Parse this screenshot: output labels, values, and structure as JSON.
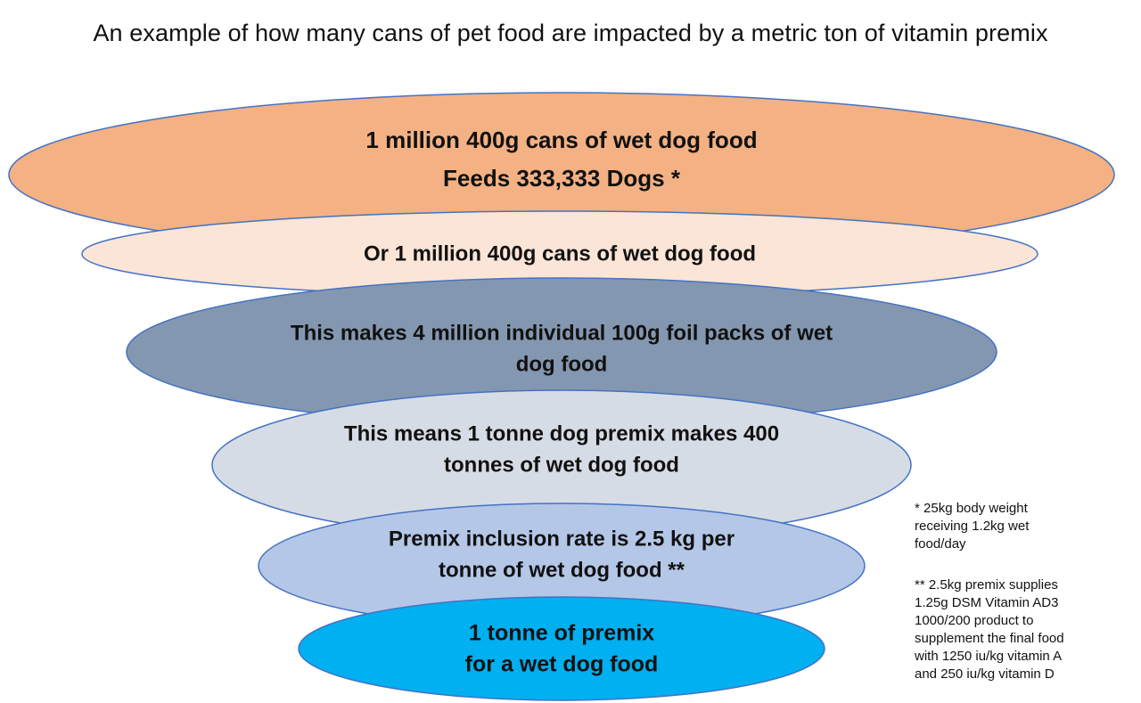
{
  "title": "An example of how many cans of pet food are impacted by a metric ton of vitamin premix",
  "layers": [
    {
      "lines": [
        "1 million 400g cans of wet dog food",
        "Feeds 333,333 Dogs *"
      ],
      "color": "#f4b183"
    },
    {
      "lines": [
        "Or 1 million 400g cans of wet dog food"
      ],
      "color": "#fbe5d6"
    },
    {
      "lines": [
        "This makes 4 million individual 100g foil packs of wet",
        "dog food"
      ],
      "color": "#8497b0"
    },
    {
      "lines": [
        "This means 1 tonne dog premix makes 400",
        "tonnes of wet dog food"
      ],
      "color": "#d6dce5"
    },
    {
      "lines": [
        "Premix inclusion rate is 2.5 kg per",
        "tonne of wet dog food **"
      ],
      "color": "#b4c7e7"
    },
    {
      "lines": [
        "1 tonne of premix",
        "for a wet dog food"
      ],
      "color": "#00b0f0"
    }
  ],
  "notes": {
    "note1": [
      "* 25kg body weight",
      "receiving 1.2kg wet",
      "food/day"
    ],
    "note2": [
      "** 2.5kg premix supplies",
      "1.25g DSM Vitamin AD3",
      "1000/200 product to",
      "supplement the final food",
      "with 1250 iu/kg vitamin A",
      "and 250 iu/kg vitamin D"
    ]
  }
}
